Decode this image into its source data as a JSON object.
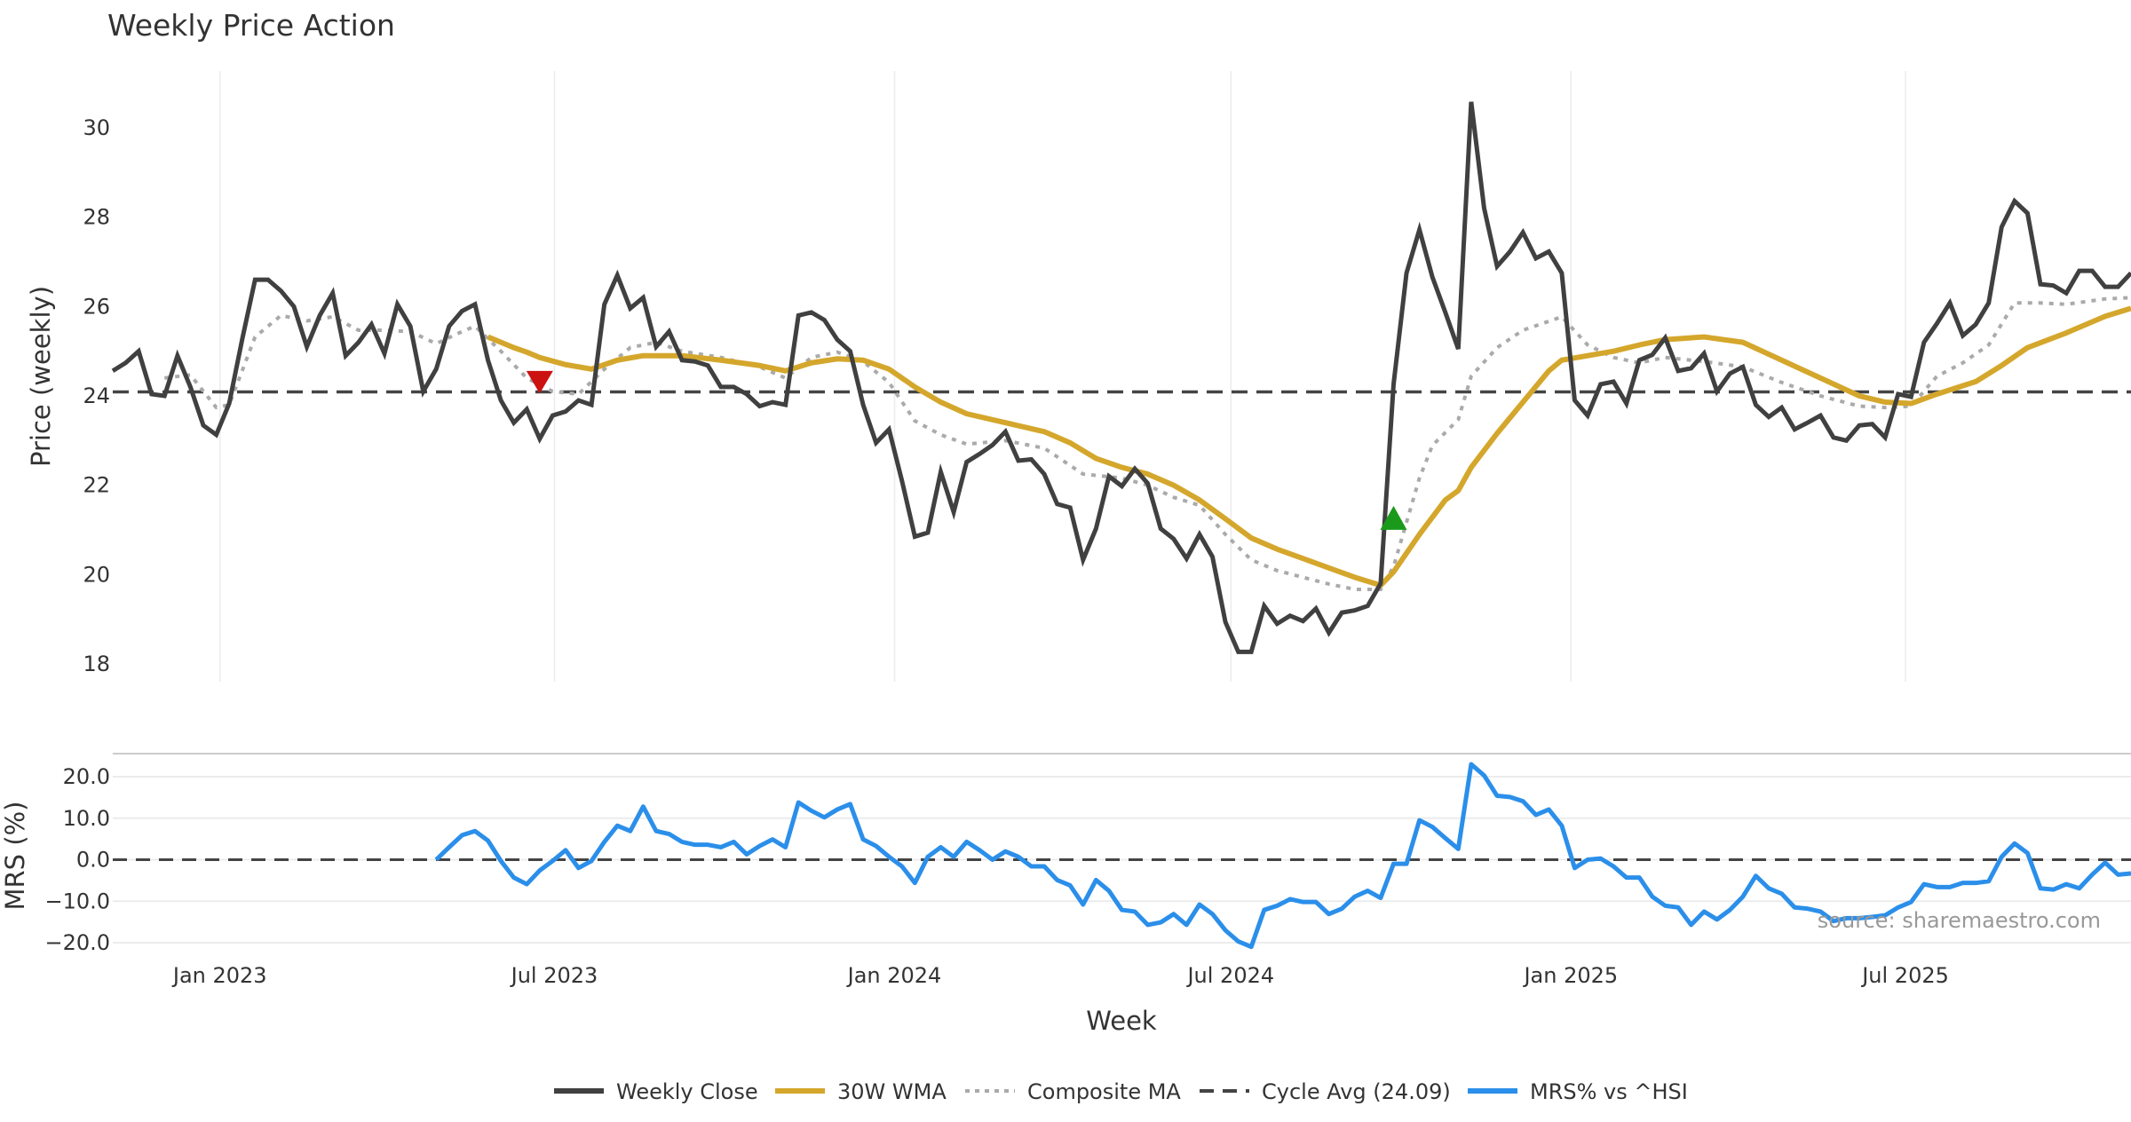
{
  "chart_data": [
    {
      "type": "line",
      "title": "Weekly Price Action",
      "xlabel": "",
      "ylabel": "Price (weekly)",
      "ylim": [
        17.6,
        31.3
      ],
      "yticks": [
        18,
        20,
        22,
        24,
        26,
        28,
        30
      ],
      "grid": true,
      "x_unit": "week index (weekly bars from start_date)",
      "start_date": "2022-11-04",
      "series": [
        {
          "name": "Weekly Close",
          "color": "#404040",
          "start_index": 0,
          "values": [
            24.56,
            24.74,
            25.0,
            24.04,
            24.0,
            24.9,
            24.2,
            23.34,
            23.13,
            23.83,
            25.26,
            26.6,
            26.6,
            26.35,
            26.0,
            25.1,
            25.8,
            26.3,
            24.9,
            25.2,
            25.6,
            24.95,
            26.05,
            25.56,
            24.1,
            24.6,
            25.56,
            25.9,
            26.05,
            24.8,
            23.9,
            23.4,
            23.7,
            23.04,
            23.56,
            23.65,
            23.9,
            23.8,
            26.05,
            26.7,
            25.96,
            26.2,
            25.1,
            25.44,
            24.8,
            24.77,
            24.68,
            24.2,
            24.2,
            24.04,
            23.77,
            23.86,
            23.8,
            25.8,
            25.87,
            25.7,
            25.26,
            25.0,
            23.8,
            22.95,
            23.25,
            22.1,
            20.85,
            20.94,
            22.3,
            21.4,
            22.52,
            22.7,
            22.9,
            23.2,
            22.55,
            22.58,
            22.25,
            21.58,
            21.5,
            20.33,
            21.03,
            22.2,
            21.98,
            22.37,
            22.04,
            21.03,
            20.8,
            20.36,
            20.9,
            20.4,
            18.94,
            18.27,
            18.27,
            19.3,
            18.9,
            19.08,
            18.96,
            19.24,
            18.7,
            19.15,
            19.2,
            19.3,
            19.8,
            24.26,
            26.75,
            27.72,
            26.66,
            25.87,
            25.05,
            30.58,
            28.2,
            26.9,
            27.23,
            27.66,
            27.08,
            27.23,
            26.75,
            23.9,
            23.56,
            24.26,
            24.32,
            23.83,
            24.8,
            24.92,
            25.3,
            24.56,
            24.62,
            24.95,
            24.1,
            24.5,
            24.65,
            23.8,
            23.53,
            23.74,
            23.25,
            23.4,
            23.56,
            23.07,
            23.0,
            23.34,
            23.37,
            23.07,
            24.04,
            23.98,
            25.2,
            25.62,
            26.08,
            25.35,
            25.6,
            26.08,
            27.78,
            28.36,
            28.09,
            26.5,
            26.47,
            26.3,
            26.8,
            26.8,
            26.44,
            26.44,
            26.75
          ]
        },
        {
          "name": "30W WMA",
          "color": "#D4A72C",
          "points": [
            [
              29,
              25.32
            ],
            [
              31,
              25.08
            ],
            [
              32,
              24.98
            ],
            [
              33,
              24.86
            ],
            [
              35,
              24.7
            ],
            [
              37,
              24.6
            ],
            [
              39,
              24.8
            ],
            [
              41,
              24.9
            ],
            [
              44,
              24.9
            ],
            [
              47,
              24.8
            ],
            [
              50,
              24.68
            ],
            [
              52,
              24.56
            ],
            [
              54,
              24.74
            ],
            [
              56,
              24.83
            ],
            [
              58,
              24.8
            ],
            [
              60,
              24.6
            ],
            [
              62,
              24.2
            ],
            [
              64,
              23.86
            ],
            [
              66,
              23.6
            ],
            [
              69,
              23.4
            ],
            [
              72,
              23.2
            ],
            [
              74,
              22.95
            ],
            [
              76,
              22.6
            ],
            [
              78,
              22.4
            ],
            [
              80,
              22.25
            ],
            [
              82,
              22.0
            ],
            [
              84,
              21.67
            ],
            [
              86,
              21.25
            ],
            [
              88,
              20.82
            ],
            [
              90,
              20.57
            ],
            [
              92,
              20.36
            ],
            [
              94,
              20.15
            ],
            [
              96,
              19.94
            ],
            [
              98,
              19.76
            ],
            [
              99,
              20.06
            ],
            [
              101,
              20.9
            ],
            [
              103,
              21.67
            ],
            [
              104,
              21.88
            ],
            [
              105,
              22.4
            ],
            [
              107,
              23.16
            ],
            [
              109,
              23.86
            ],
            [
              111,
              24.56
            ],
            [
              112,
              24.8
            ],
            [
              114,
              24.9
            ],
            [
              116,
              25.0
            ],
            [
              118,
              25.14
            ],
            [
              120,
              25.26
            ],
            [
              123,
              25.32
            ],
            [
              126,
              25.2
            ],
            [
              129,
              24.8
            ],
            [
              132,
              24.4
            ],
            [
              135,
              24.0
            ],
            [
              137,
              23.86
            ],
            [
              139,
              23.83
            ],
            [
              141,
              24.04
            ],
            [
              144,
              24.32
            ],
            [
              146,
              24.68
            ],
            [
              148,
              25.08
            ],
            [
              151,
              25.41
            ],
            [
              154,
              25.78
            ],
            [
              156,
              25.96
            ]
          ]
        },
        {
          "name": "Composite MA",
          "color": "#AAAAAA",
          "points": [
            [
              4,
              24.4
            ],
            [
              6,
              24.47
            ],
            [
              8,
              23.74
            ],
            [
              9,
              23.8
            ],
            [
              11,
              25.32
            ],
            [
              13,
              25.8
            ],
            [
              15,
              25.68
            ],
            [
              17,
              25.77
            ],
            [
              19,
              25.47
            ],
            [
              21,
              25.47
            ],
            [
              23,
              25.44
            ],
            [
              25,
              25.17
            ],
            [
              27,
              25.44
            ],
            [
              28,
              25.56
            ],
            [
              30,
              25.0
            ],
            [
              32,
              24.4
            ],
            [
              34,
              24.1
            ],
            [
              36,
              24.04
            ],
            [
              38,
              24.6
            ],
            [
              40,
              25.08
            ],
            [
              42,
              25.2
            ],
            [
              44,
              25.0
            ],
            [
              47,
              24.86
            ],
            [
              50,
              24.65
            ],
            [
              52,
              24.4
            ],
            [
              54,
              24.86
            ],
            [
              56,
              24.98
            ],
            [
              58,
              24.77
            ],
            [
              60,
              24.3
            ],
            [
              62,
              23.44
            ],
            [
              64,
              23.13
            ],
            [
              66,
              22.92
            ],
            [
              69,
              23.0
            ],
            [
              72,
              22.83
            ],
            [
              75,
              22.25
            ],
            [
              78,
              22.16
            ],
            [
              80,
              22.0
            ],
            [
              82,
              21.73
            ],
            [
              84,
              21.55
            ],
            [
              86,
              20.9
            ],
            [
              88,
              20.33
            ],
            [
              90,
              20.09
            ],
            [
              92,
              19.94
            ],
            [
              94,
              19.79
            ],
            [
              96,
              19.67
            ],
            [
              98,
              19.67
            ],
            [
              99,
              20.18
            ],
            [
              101,
              22.16
            ],
            [
              102,
              22.89
            ],
            [
              104,
              23.47
            ],
            [
              105,
              24.44
            ],
            [
              107,
              25.08
            ],
            [
              109,
              25.47
            ],
            [
              112,
              25.77
            ],
            [
              114,
              25.14
            ],
            [
              116,
              24.86
            ],
            [
              118,
              24.74
            ],
            [
              120,
              24.86
            ],
            [
              123,
              24.77
            ],
            [
              126,
              24.65
            ],
            [
              129,
              24.3
            ],
            [
              132,
              24.0
            ],
            [
              135,
              23.77
            ],
            [
              137,
              23.74
            ],
            [
              139,
              23.77
            ],
            [
              141,
              24.44
            ],
            [
              143,
              24.74
            ],
            [
              145,
              25.14
            ],
            [
              147,
              26.08
            ],
            [
              149,
              26.08
            ],
            [
              151,
              26.05
            ],
            [
              154,
              26.17
            ],
            [
              156,
              26.2
            ]
          ]
        },
        {
          "name": "Cycle Avg (24.09)",
          "color": "#444444",
          "value": 24.09
        }
      ],
      "markers": [
        {
          "type": "sell",
          "shape": "triangle-down",
          "color": "#CC1111",
          "index": 33,
          "value": 24.26
        },
        {
          "type": "buy",
          "shape": "triangle-up",
          "color": "#1A9A1A",
          "index": 99,
          "value": 21.3
        }
      ]
    },
    {
      "type": "line",
      "title": "",
      "xlabel": "Week",
      "ylabel": "MRS (%)",
      "ylim": [
        -22.5,
        25.5
      ],
      "yticks": [
        20.0,
        10.0,
        0.0,
        -10.0,
        -20.0
      ],
      "ytick_labels": [
        "20.0",
        "10.0",
        "0.0",
        "−10.0",
        "−20.0"
      ],
      "xticks": [
        {
          "label": "Jan 2023",
          "date": "2023-01-01"
        },
        {
          "label": "Jul 2023",
          "date": "2023-07-01"
        },
        {
          "label": "Jan 2024",
          "date": "2024-01-01"
        },
        {
          "label": "Jul 2024",
          "date": "2024-07-01"
        },
        {
          "label": "Jan 2025",
          "date": "2025-01-01"
        },
        {
          "label": "Jul 2025",
          "date": "2025-07-01"
        }
      ],
      "grid": true,
      "zero_line": 0,
      "series": [
        {
          "name": "MRS% vs ^HSI",
          "color": "#2B8FEA",
          "start_index": 25,
          "values": [
            0,
            3,
            5.9,
            6.9,
            4.6,
            -0.3,
            -4.3,
            -5.9,
            -2.6,
            -0.3,
            2.3,
            -2,
            -0.3,
            4.3,
            8.2,
            6.9,
            12.8,
            6.9,
            6.2,
            4.3,
            3.6,
            3.6,
            3,
            4.3,
            1.3,
            3.3,
            4.9,
            3,
            13.8,
            11.8,
            10.2,
            12.1,
            13.4,
            4.9,
            3.3,
            0.7,
            -1.6,
            -5.6,
            0.7,
            3,
            0.7,
            4.3,
            2.3,
            0,
            2,
            0.7,
            -1.6,
            -1.6,
            -4.9,
            -6.2,
            -10.8,
            -4.9,
            -7.5,
            -12.1,
            -12.5,
            -15.7,
            -15.1,
            -13.1,
            -15.7,
            -10.8,
            -13.1,
            -17,
            -19.7,
            -21,
            -12.1,
            -11.1,
            -9.5,
            -10.2,
            -10.2,
            -13.1,
            -11.8,
            -8.9,
            -7.5,
            -9.2,
            -1,
            -1,
            9.5,
            7.9,
            5.2,
            2.6,
            23,
            20.3,
            15.4,
            15.1,
            14.1,
            10.8,
            12.1,
            8.2,
            -2,
            0,
            0.3,
            -1.6,
            -4.3,
            -4.3,
            -8.9,
            -11.1,
            -11.5,
            -15.7,
            -12.5,
            -14.4,
            -12.1,
            -8.9,
            -3.9,
            -6.9,
            -8.2,
            -11.5,
            -11.8,
            -12.5,
            -14.8,
            -14.1,
            -14.1,
            -13.8,
            -13.4,
            -11.5,
            -10.2,
            -5.9,
            -6.6,
            -6.6,
            -5.6,
            -5.6,
            -5.2,
            0.7,
            3.9,
            1.6,
            -6.9,
            -7.2,
            -5.9,
            -6.9,
            -3.6,
            -0.7,
            -3.6,
            -3.3
          ]
        }
      ],
      "annotation": "source: sharemaestro.com"
    }
  ],
  "legend": {
    "placement": "bottom-center",
    "items": [
      {
        "label": "Weekly Close",
        "style": "solid",
        "color": "#404040"
      },
      {
        "label": "30W WMA",
        "style": "solid",
        "color": "#D4A72C"
      },
      {
        "label": "Composite MA",
        "style": "dotted",
        "color": "#AAAAAA"
      },
      {
        "label": "Cycle Avg (24.09)",
        "style": "dashed",
        "color": "#444444"
      },
      {
        "label": "MRS% vs ^HSI",
        "style": "solid",
        "color": "#2B8FEA"
      }
    ]
  }
}
